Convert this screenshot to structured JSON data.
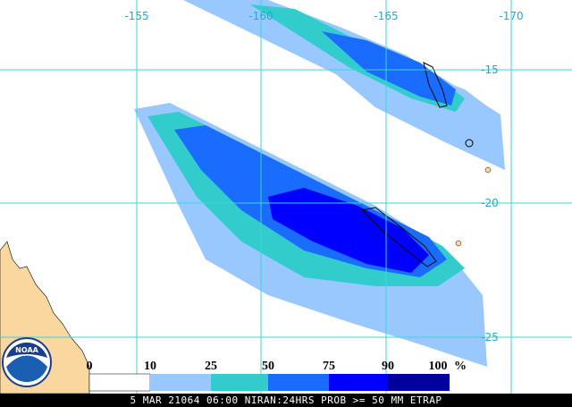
{
  "map": {
    "longitude_labels": [
      "-155",
      "-160",
      "-165",
      "-170"
    ],
    "latitude_labels": [
      "-15",
      "-20",
      "-25"
    ],
    "logo": "NOAA",
    "colorbar": {
      "labels": [
        "0",
        "10",
        "25",
        "50",
        "75",
        "90",
        "100"
      ],
      "unit": "%"
    },
    "footer": "5 MAR 21064 06:00 NIRAN:24HRS PROB >= 50 MM ETRAP"
  }
}
